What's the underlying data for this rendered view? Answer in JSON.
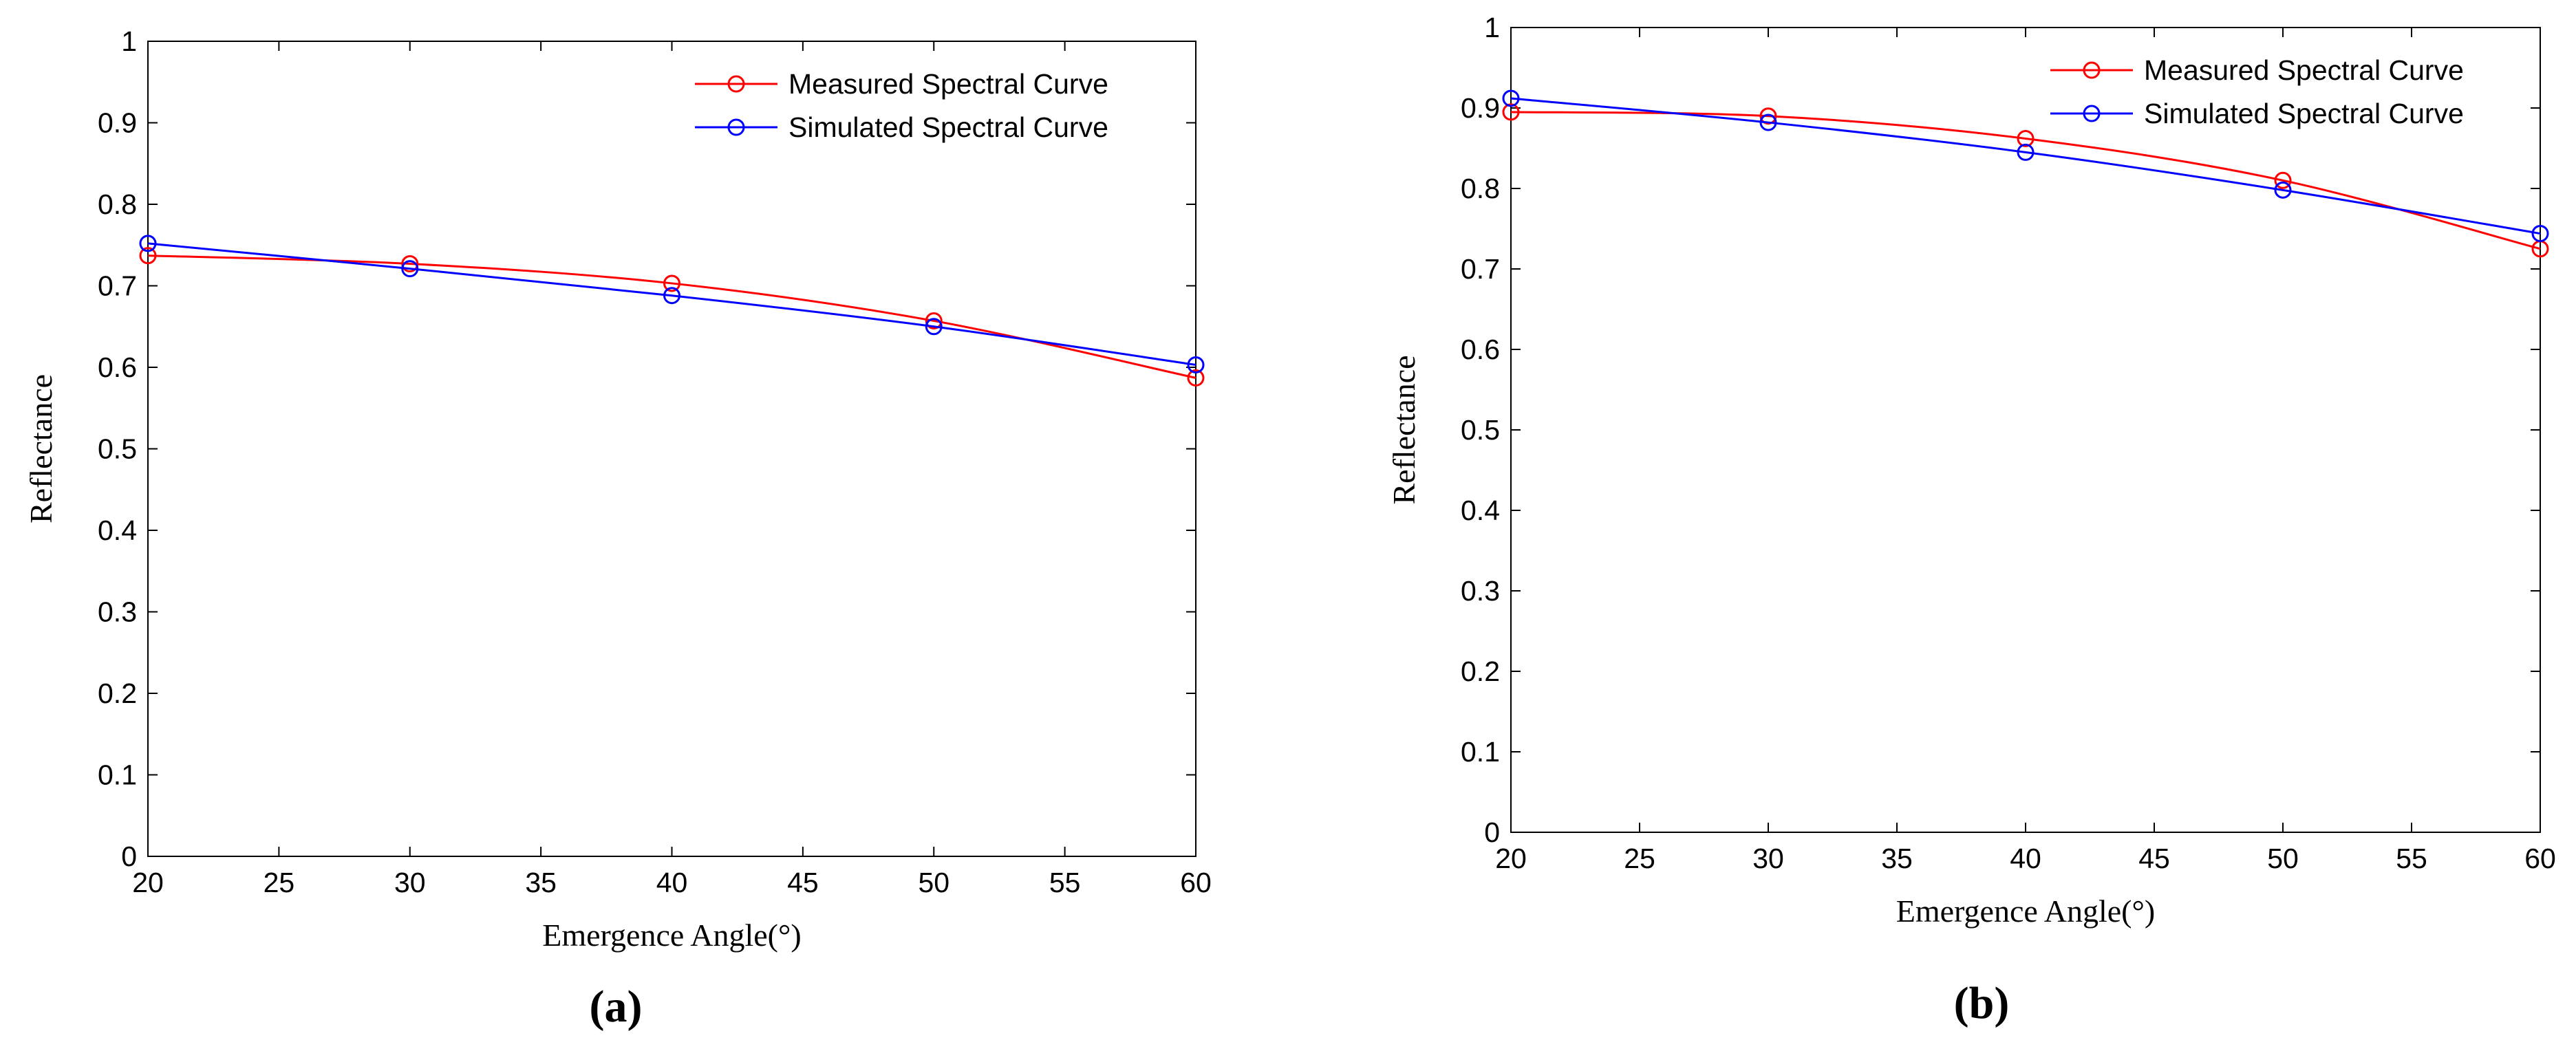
{
  "figure": {
    "panels": [
      "(a)",
      "(b)"
    ]
  },
  "chart_data": [
    {
      "type": "line",
      "panel_label": "(a)",
      "title": "",
      "xlabel": "Emergence Angle(°)",
      "ylabel": "Reflectance",
      "xlim": [
        20,
        60
      ],
      "ylim": [
        0,
        1
      ],
      "xticks": [
        "20",
        "25",
        "30",
        "35",
        "40",
        "45",
        "50",
        "55",
        "60"
      ],
      "yticks": [
        "0",
        "0.1",
        "0.2",
        "0.3",
        "0.4",
        "0.5",
        "0.6",
        "0.7",
        "0.8",
        "0.9",
        "1"
      ],
      "grid": false,
      "legend_position": "top-right",
      "x": [
        20,
        30,
        40,
        50,
        60
      ],
      "series": [
        {
          "name": "Measured Spectral Curve",
          "color": "#ff0000",
          "marker": "circle",
          "values": [
            0.737,
            0.727,
            0.703,
            0.657,
            0.587
          ]
        },
        {
          "name": "Simulated Spectral Curve",
          "color": "#0000ff",
          "marker": "circle",
          "values": [
            0.752,
            0.721,
            0.688,
            0.65,
            0.603
          ]
        }
      ]
    },
    {
      "type": "line",
      "panel_label": "(b)",
      "title": "",
      "xlabel": "Emergence Angle(°)",
      "ylabel": "Reflectance",
      "xlim": [
        20,
        60
      ],
      "ylim": [
        0,
        1
      ],
      "xticks": [
        "20",
        "25",
        "30",
        "35",
        "40",
        "45",
        "50",
        "55",
        "60"
      ],
      "yticks": [
        "0",
        "0.1",
        "0.2",
        "0.3",
        "0.4",
        "0.5",
        "0.6",
        "0.7",
        "0.8",
        "0.9",
        "1"
      ],
      "grid": false,
      "legend_position": "top-right",
      "x": [
        20,
        30,
        40,
        50,
        60
      ],
      "series": [
        {
          "name": "Measured Spectral Curve",
          "color": "#ff0000",
          "marker": "circle",
          "values": [
            0.895,
            0.89,
            0.862,
            0.81,
            0.725
          ]
        },
        {
          "name": "Simulated Spectral Curve",
          "color": "#0000ff",
          "marker": "circle",
          "values": [
            0.912,
            0.882,
            0.845,
            0.798,
            0.744
          ]
        }
      ]
    }
  ]
}
